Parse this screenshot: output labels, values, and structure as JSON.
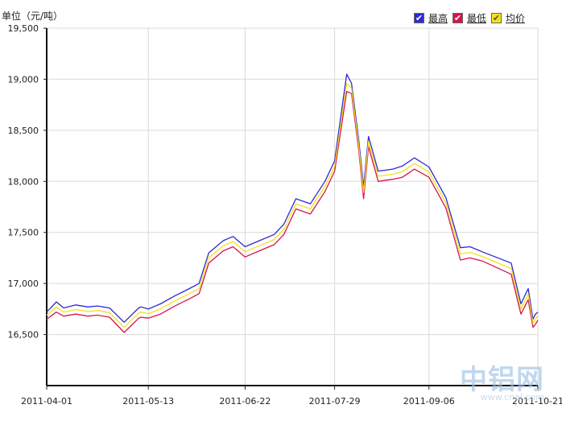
{
  "unit_label": "单位（元/吨）",
  "legend": [
    {
      "label": "最高",
      "color": "#2b2bd6",
      "check_color": "#ffffff",
      "checked": true
    },
    {
      "label": "最低",
      "color": "#d6154a",
      "check_color": "#ffffff",
      "checked": true
    },
    {
      "label": "均价",
      "color": "#f2e21a",
      "check_color": "#555555",
      "checked": true
    }
  ],
  "watermark": {
    "main": "中铝网",
    "sub": "www.cnal.com"
  },
  "chart_data": {
    "type": "line",
    "title": "",
    "xlabel": "",
    "ylabel": "单位（元/吨）",
    "ylim": [
      16000,
      19500
    ],
    "y_ticks": [
      16500,
      17000,
      17500,
      18000,
      18500,
      19000,
      19500
    ],
    "y_tick_labels": [
      "16,500",
      "17,000",
      "17,500",
      "18,000",
      "18,500",
      "19,000",
      "19,500"
    ],
    "x_ticks": [
      "2011-04-01",
      "2011-05-13",
      "2011-06-22",
      "2011-07-29",
      "2011-09-06",
      "2011-10-21"
    ],
    "grid": true,
    "legend_position": "top-right",
    "x": [
      "2011-04-01",
      "2011-04-05",
      "2011-04-08",
      "2011-04-13",
      "2011-04-18",
      "2011-04-22",
      "2011-04-27",
      "2011-05-03",
      "2011-05-09",
      "2011-05-10",
      "2011-05-13",
      "2011-05-18",
      "2011-05-24",
      "2011-05-30",
      "2011-06-03",
      "2011-06-07",
      "2011-06-13",
      "2011-06-17",
      "2011-06-22",
      "2011-06-28",
      "2011-07-04",
      "2011-07-08",
      "2011-07-13",
      "2011-07-19",
      "2011-07-25",
      "2011-07-29",
      "2011-08-03",
      "2011-08-05",
      "2011-08-08",
      "2011-08-10",
      "2011-08-12",
      "2011-08-16",
      "2011-08-22",
      "2011-08-26",
      "2011-08-31",
      "2011-09-06",
      "2011-09-13",
      "2011-09-19",
      "2011-09-23",
      "2011-09-28",
      "2011-10-10",
      "2011-10-14",
      "2011-10-17",
      "2011-10-19",
      "2011-10-20",
      "2011-10-21"
    ],
    "series": [
      {
        "name": "最高",
        "color": "#2b2bd6",
        "values": [
          16720,
          16820,
          16760,
          16790,
          16770,
          16780,
          16760,
          16620,
          16760,
          16770,
          16750,
          16800,
          16880,
          16950,
          17000,
          17300,
          17420,
          17460,
          17360,
          17420,
          17480,
          17580,
          17830,
          17780,
          18000,
          18200,
          19050,
          18960,
          18400,
          17950,
          18440,
          18100,
          18120,
          18150,
          18230,
          18140,
          17840,
          17350,
          17360,
          17310,
          17200,
          16800,
          16950,
          16650,
          16700,
          16720
        ]
      },
      {
        "name": "最低",
        "color": "#d6154a",
        "values": [
          16650,
          16720,
          16680,
          16700,
          16680,
          16690,
          16670,
          16520,
          16660,
          16670,
          16660,
          16700,
          16780,
          16850,
          16900,
          17200,
          17320,
          17360,
          17260,
          17320,
          17380,
          17480,
          17730,
          17680,
          17900,
          18100,
          18880,
          18860,
          18300,
          17830,
          18340,
          18000,
          18020,
          18040,
          18120,
          18040,
          17740,
          17230,
          17250,
          17220,
          17090,
          16700,
          16840,
          16570,
          16600,
          16640
        ]
      },
      {
        "name": "均价",
        "color": "#f2e21a",
        "values": [
          16690,
          16770,
          16720,
          16745,
          16725,
          16735,
          16715,
          16570,
          16710,
          16720,
          16705,
          16750,
          16830,
          16900,
          16950,
          17250,
          17370,
          17410,
          17310,
          17370,
          17430,
          17530,
          17780,
          17730,
          17950,
          18150,
          18960,
          18910,
          18350,
          17890,
          18390,
          18050,
          18070,
          18095,
          18175,
          18090,
          17790,
          17290,
          17305,
          17265,
          17145,
          16750,
          16895,
          16610,
          16650,
          16680
        ]
      }
    ]
  }
}
